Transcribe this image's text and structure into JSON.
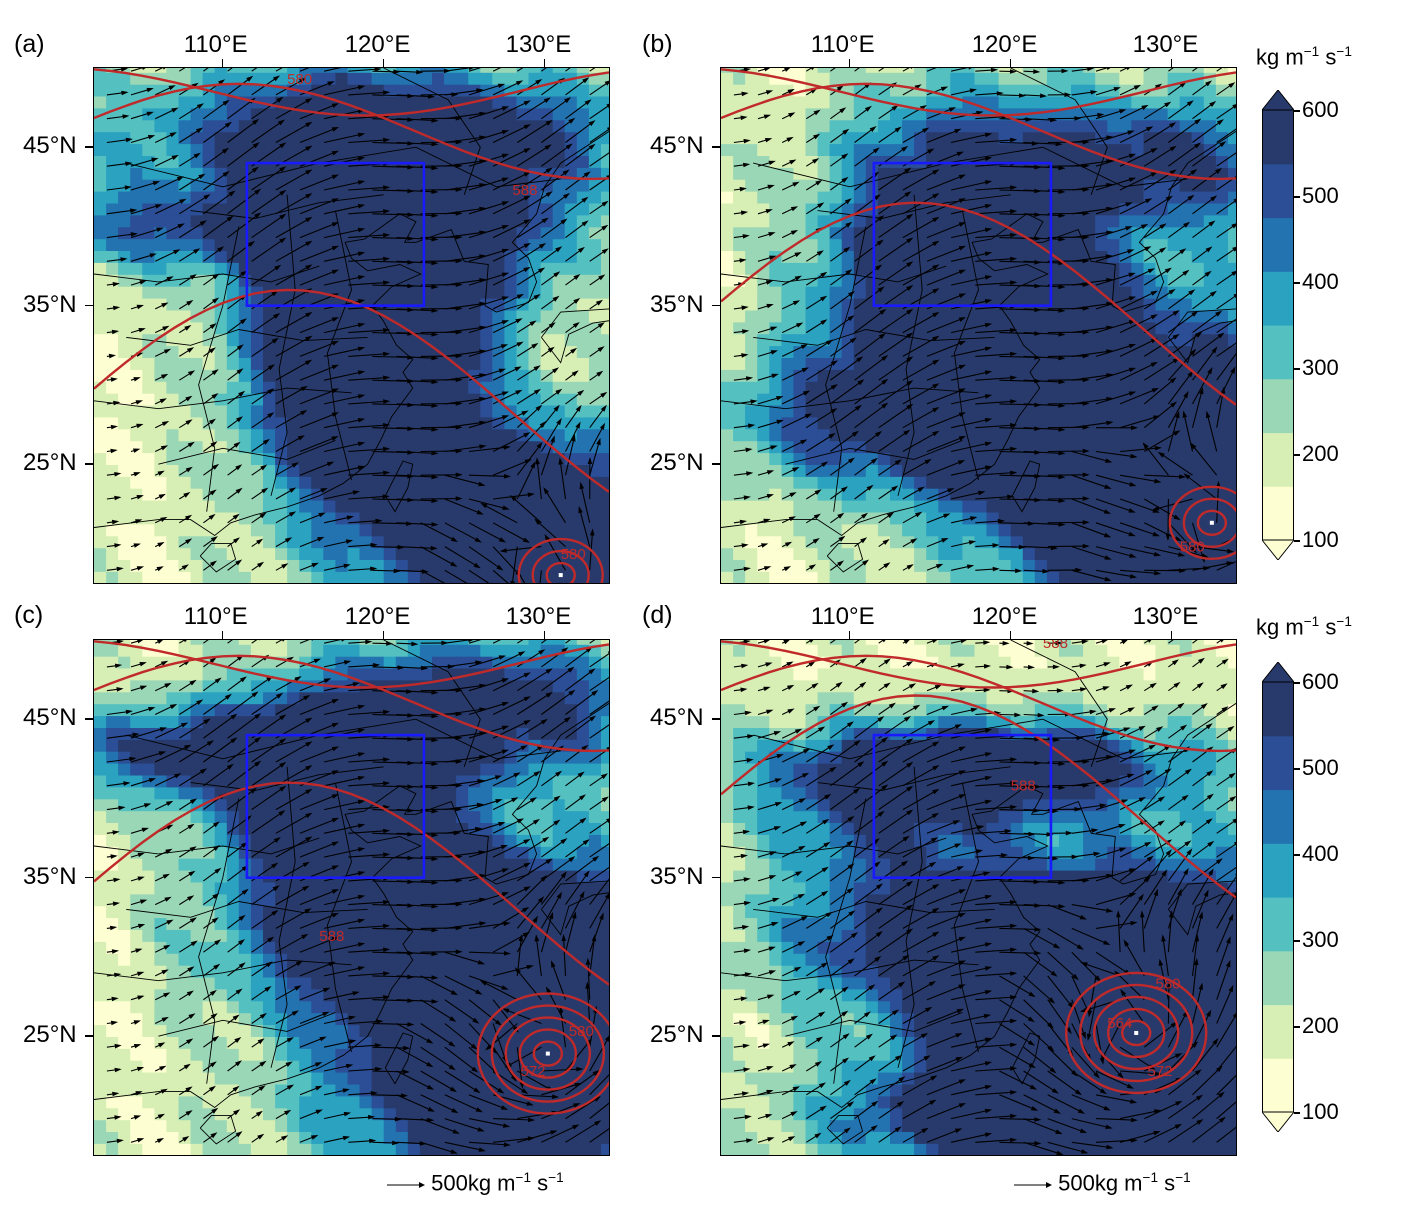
{
  "panels": [
    {
      "id": "a",
      "label": "(a)",
      "contour_labels": [
        "580",
        "588",
        "580"
      ],
      "cyclone": {
        "lon": 131.0,
        "lat": 18.0
      }
    },
    {
      "id": "b",
      "label": "(b)",
      "contour_labels": [
        "580"
      ],
      "cyclone": {
        "lon": 132.5,
        "lat": 21.3
      }
    },
    {
      "id": "c",
      "label": "(c)",
      "contour_labels": [
        "588",
        "580",
        "572"
      ],
      "cyclone": {
        "lon": 130.2,
        "lat": 23.9
      }
    },
    {
      "id": "d",
      "label": "(d)",
      "contour_labels": [
        "588",
        "588",
        "580",
        "572",
        "564"
      ],
      "cyclone": {
        "lon": 127.8,
        "lat": 25.2
      }
    }
  ],
  "axes": {
    "lon_ticks": [
      "110°E",
      "120°E",
      "130°E"
    ],
    "lat_ticks": [
      "45°N",
      "35°N",
      "25°N"
    ],
    "lon_range": [
      102,
      134
    ],
    "lat_range": [
      17.5,
      50
    ]
  },
  "box": {
    "lon": [
      111.5,
      122.5
    ],
    "lat": [
      35,
      44
    ]
  },
  "colorbar": {
    "unit_kg": "kg m",
    "unit_exp1": "−1",
    "unit_s": " s",
    "unit_exp2": "−1",
    "ticks": [
      "600",
      "500",
      "400",
      "300",
      "200",
      "100"
    ],
    "range": [
      100,
      600
    ],
    "colors": [
      "#fdfed1",
      "#d7efb4",
      "#9ad7b6",
      "#55c0c0",
      "#2aa2c0",
      "#2373b0",
      "#2b4e96",
      "#283a6b"
    ]
  },
  "reference": {
    "value_text": "500kg m",
    "exp1": "−1",
    "s_text": " s",
    "exp2": "−1"
  },
  "colors": {
    "contour": "#c02a2a",
    "box": "#1a1aff",
    "arrow": "#000000"
  }
}
